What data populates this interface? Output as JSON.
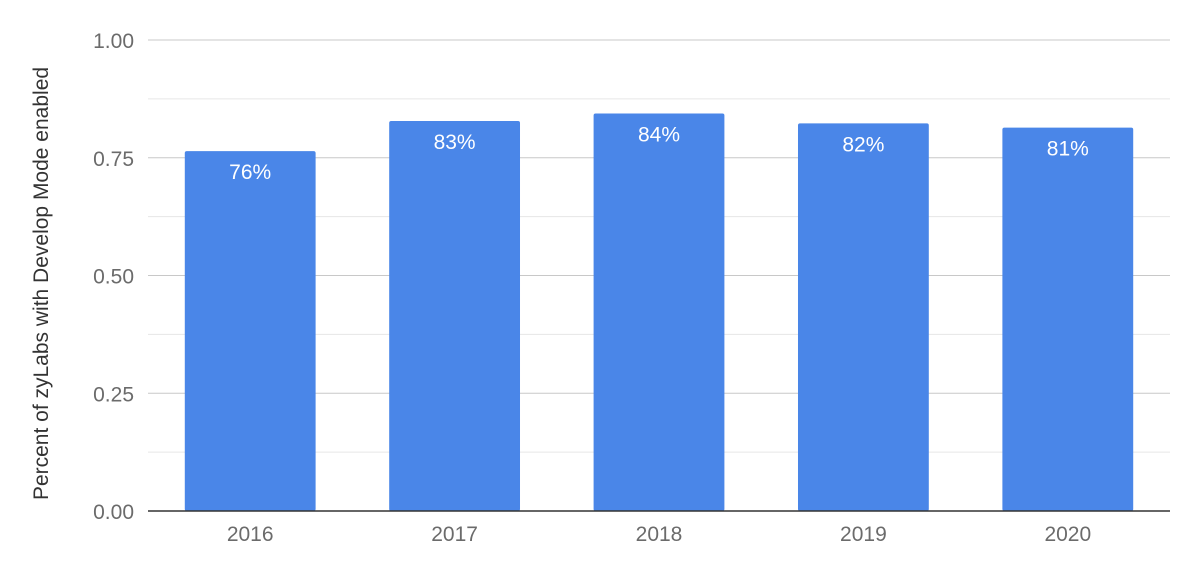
{
  "chart_data": {
    "type": "bar",
    "title": "",
    "xlabel": "",
    "ylabel": "Percent of zyLabs with Develop Mode enabled",
    "categories": [
      "2016",
      "2017",
      "2018",
      "2019",
      "2020"
    ],
    "values": [
      0.764,
      0.828,
      0.844,
      0.823,
      0.814
    ],
    "data_labels": [
      "76%",
      "83%",
      "84%",
      "82%",
      "81%"
    ],
    "ylim": [
      0,
      1
    ],
    "yticks": [
      0,
      0.25,
      0.5,
      0.75,
      1
    ],
    "ytick_labels": [
      "0.00",
      "0.25",
      "0.50",
      "0.75",
      "1.00"
    ],
    "minor_gridlines": true,
    "grid": true,
    "legend": "none",
    "bar_color": "#4a86e8",
    "gridline_color": "#d0d0d0",
    "axis_color": "#333333"
  }
}
